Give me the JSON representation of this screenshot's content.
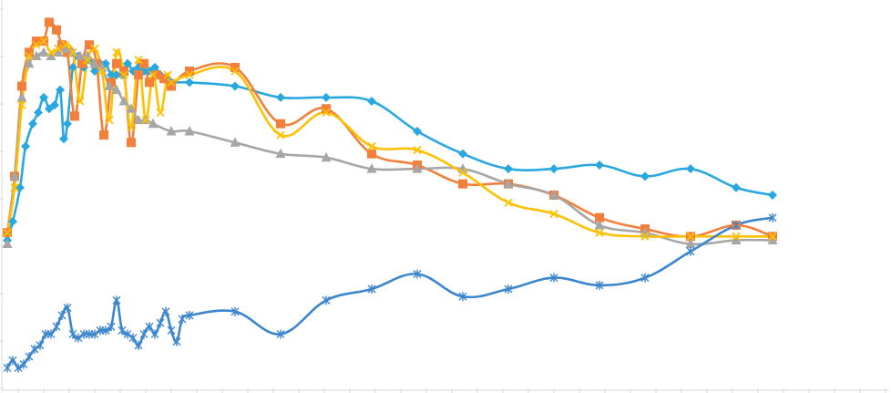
{
  "chart_data": {
    "type": "line",
    "title": "",
    "xlabel": "",
    "ylabel": "",
    "grid": false,
    "legend": "none",
    "xlim": [
      0,
      42
    ],
    "ylim": [
      0,
      100
    ],
    "series": [
      {
        "color": "#29A8E0",
        "marker": "diamond",
        "points": [
          [
            0,
            38
          ],
          [
            0.3,
            43
          ],
          [
            0.7,
            52
          ],
          [
            1,
            63
          ],
          [
            1.4,
            69
          ],
          [
            1.7,
            72
          ],
          [
            2,
            76
          ],
          [
            2.3,
            73
          ],
          [
            2.6,
            74
          ],
          [
            2.9,
            78
          ],
          [
            3.1,
            65
          ],
          [
            3.3,
            69
          ],
          [
            3.6,
            84
          ],
          [
            3.9,
            87
          ],
          [
            4.2,
            84
          ],
          [
            4.5,
            86
          ],
          [
            4.8,
            83
          ],
          [
            5.1,
            85
          ],
          [
            5.4,
            85
          ],
          [
            5.7,
            82
          ],
          [
            6.0,
            82
          ],
          [
            6.3,
            82
          ],
          [
            6.6,
            85
          ],
          [
            6.9,
            83
          ],
          [
            7.2,
            84
          ],
          [
            7.5,
            83
          ],
          [
            7.8,
            83
          ],
          [
            8.1,
            84
          ],
          [
            8.4,
            82
          ],
          [
            8.7,
            81
          ],
          [
            9,
            80
          ],
          [
            10,
            80
          ],
          [
            12.5,
            79
          ],
          [
            15,
            76
          ],
          [
            17.5,
            76
          ],
          [
            20,
            75
          ],
          [
            22.5,
            67
          ],
          [
            25,
            61
          ],
          [
            27.5,
            57
          ],
          [
            30,
            57
          ],
          [
            32.5,
            58
          ],
          [
            35,
            55
          ],
          [
            37.5,
            57
          ],
          [
            40,
            52
          ],
          [
            42,
            50
          ]
        ]
      },
      {
        "color": "#F47F3A",
        "marker": "square",
        "points": [
          [
            0,
            40
          ],
          [
            0.4,
            55
          ],
          [
            0.8,
            79
          ],
          [
            1.2,
            88
          ],
          [
            1.6,
            91
          ],
          [
            2,
            91
          ],
          [
            2.3,
            96
          ],
          [
            2.7,
            94
          ],
          [
            3,
            90
          ],
          [
            3.3,
            88
          ],
          [
            3.7,
            71
          ],
          [
            4.1,
            85
          ],
          [
            4.5,
            90
          ],
          [
            4.9,
            85
          ],
          [
            5.3,
            66
          ],
          [
            5.7,
            80
          ],
          [
            6,
            85
          ],
          [
            6.4,
            83
          ],
          [
            6.8,
            64
          ],
          [
            7.2,
            82
          ],
          [
            7.5,
            85
          ],
          [
            7.8,
            80
          ],
          [
            8.2,
            82
          ],
          [
            8.6,
            81
          ],
          [
            9,
            79
          ],
          [
            10,
            83
          ],
          [
            12.5,
            84
          ],
          [
            15,
            69
          ],
          [
            17.5,
            73
          ],
          [
            20,
            61
          ],
          [
            22.5,
            58
          ],
          [
            25,
            53
          ],
          [
            27.5,
            53
          ],
          [
            30,
            50
          ],
          [
            32.5,
            44
          ],
          [
            35,
            41
          ],
          [
            37.5,
            39
          ],
          [
            40,
            42
          ],
          [
            42,
            39
          ]
        ]
      },
      {
        "color": "#A6A6A6",
        "marker": "triangle",
        "points": [
          [
            0,
            37
          ],
          [
            0.4,
            55
          ],
          [
            0.8,
            76
          ],
          [
            1.2,
            85
          ],
          [
            1.6,
            87
          ],
          [
            2,
            88
          ],
          [
            2.4,
            87
          ],
          [
            2.8,
            88
          ],
          [
            3.2,
            89
          ],
          [
            3.6,
            88
          ],
          [
            4.0,
            87
          ],
          [
            4.4,
            87
          ],
          [
            4.8,
            85
          ],
          [
            5.2,
            84
          ],
          [
            5.6,
            79
          ],
          [
            6.0,
            78
          ],
          [
            6.4,
            75
          ],
          [
            6.8,
            73
          ],
          [
            7.2,
            70
          ],
          [
            7.6,
            70
          ],
          [
            8,
            69
          ],
          [
            9,
            67
          ],
          [
            10,
            67
          ],
          [
            12.5,
            64
          ],
          [
            15,
            61
          ],
          [
            17.5,
            60
          ],
          [
            20,
            57
          ],
          [
            22.5,
            57
          ],
          [
            25,
            57
          ],
          [
            27.5,
            53
          ],
          [
            30,
            50
          ],
          [
            32.5,
            42
          ],
          [
            35,
            40
          ],
          [
            37.5,
            37
          ],
          [
            40,
            38
          ],
          [
            42,
            38
          ]
        ]
      },
      {
        "color": "#FFC000",
        "marker": "x",
        "points": [
          [
            0,
            40
          ],
          [
            0.4,
            52
          ],
          [
            0.8,
            74
          ],
          [
            1.2,
            87
          ],
          [
            1.6,
            90
          ],
          [
            2,
            91
          ],
          [
            2.4,
            88
          ],
          [
            2.8,
            89
          ],
          [
            3.2,
            90
          ],
          [
            3.6,
            88
          ],
          [
            4.0,
            75
          ],
          [
            4.4,
            86
          ],
          [
            4.8,
            89
          ],
          [
            5.2,
            83
          ],
          [
            5.6,
            70
          ],
          [
            6,
            88
          ],
          [
            6.4,
            82
          ],
          [
            6.8,
            68
          ],
          [
            7.2,
            86
          ],
          [
            7.6,
            70
          ],
          [
            8,
            82
          ],
          [
            8.4,
            72
          ],
          [
            8.8,
            82
          ],
          [
            9,
            80
          ],
          [
            10,
            82
          ],
          [
            12.5,
            83
          ],
          [
            15,
            66
          ],
          [
            17.5,
            72
          ],
          [
            20,
            63
          ],
          [
            22.5,
            62
          ],
          [
            25,
            56
          ],
          [
            27.5,
            48
          ],
          [
            30,
            45
          ],
          [
            32.5,
            40
          ],
          [
            35,
            39
          ],
          [
            37.5,
            39
          ],
          [
            40,
            39
          ],
          [
            42,
            39
          ]
        ]
      },
      {
        "color": "#3C86CE",
        "marker": "star",
        "points": [
          [
            0,
            4
          ],
          [
            0.3,
            6
          ],
          [
            0.6,
            4
          ],
          [
            0.9,
            5
          ],
          [
            1.2,
            7
          ],
          [
            1.5,
            9
          ],
          [
            1.8,
            10
          ],
          [
            2.1,
            13
          ],
          [
            2.4,
            13
          ],
          [
            2.7,
            15
          ],
          [
            3.0,
            18
          ],
          [
            3.3,
            20
          ],
          [
            3.6,
            13
          ],
          [
            3.9,
            12
          ],
          [
            4.2,
            13
          ],
          [
            4.5,
            13
          ],
          [
            4.8,
            13
          ],
          [
            5.1,
            14
          ],
          [
            5.4,
            14
          ],
          [
            5.7,
            15
          ],
          [
            6.0,
            22
          ],
          [
            6.3,
            14
          ],
          [
            6.6,
            13
          ],
          [
            6.9,
            12
          ],
          [
            7.2,
            10
          ],
          [
            7.5,
            13
          ],
          [
            7.8,
            15
          ],
          [
            8.1,
            13
          ],
          [
            8.4,
            16
          ],
          [
            8.7,
            19
          ],
          [
            9,
            14
          ],
          [
            9.3,
            11
          ],
          [
            9.6,
            17
          ],
          [
            10,
            18
          ],
          [
            12.5,
            19
          ],
          [
            15,
            13
          ],
          [
            17.5,
            22
          ],
          [
            20,
            25
          ],
          [
            22.5,
            29
          ],
          [
            25,
            23
          ],
          [
            27.5,
            25
          ],
          [
            30,
            28
          ],
          [
            32.5,
            26
          ],
          [
            35,
            28
          ],
          [
            37.5,
            35
          ],
          [
            40,
            42
          ],
          [
            42,
            44
          ]
        ]
      }
    ]
  }
}
